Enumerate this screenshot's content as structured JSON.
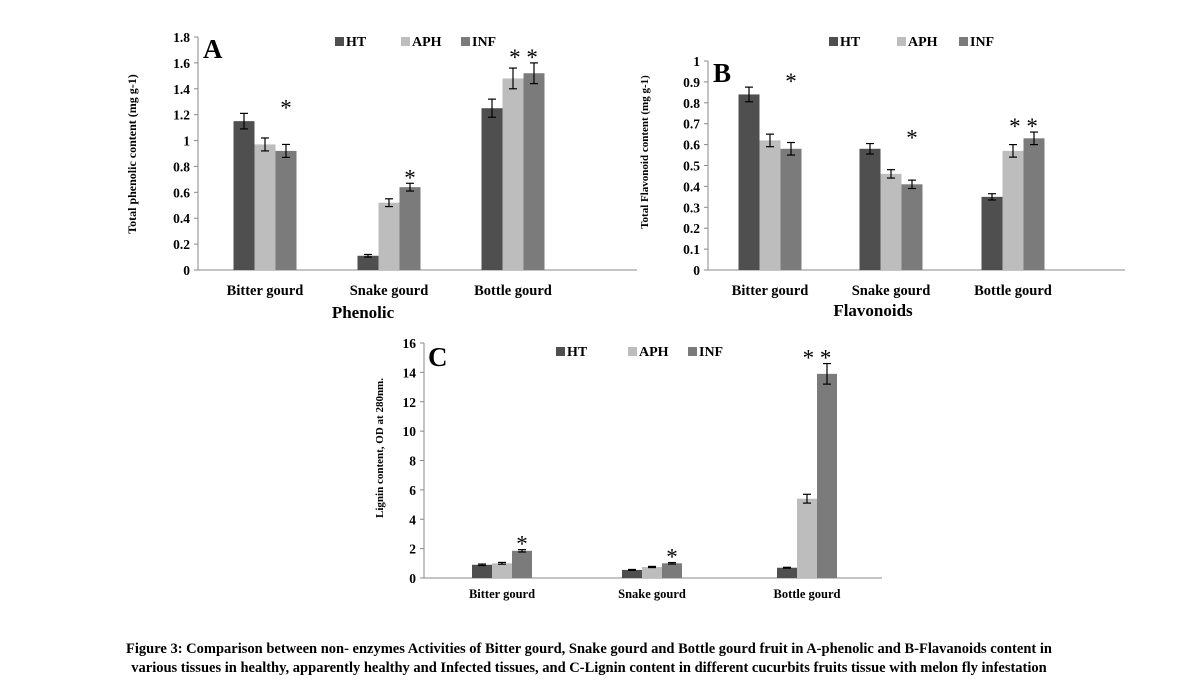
{
  "caption": {
    "line1": "Figure 3: Comparison between non- enzymes Activities of Bitter gourd, Snake gourd and Bottle gourd fruit in A-phenolic and B-Flavanoids content in",
    "line2": "various tissues in healthy, apparently healthy and Infected tissues, and C-Lignin content in different cucurbits fruits tissue with melon fly infestation"
  },
  "colors": {
    "HT": "#4f4f4f",
    "APH": "#bdbdbd",
    "INF": "#7b7b7b"
  },
  "chart_data": [
    {
      "type": "bar",
      "panel_label": "A",
      "title": "",
      "xlabel": "Phenolic",
      "ylabel": "Total phenolic content (mg g-1)",
      "ylim": [
        0,
        1.8
      ],
      "yticks": [
        "0",
        "0.2",
        "0.4",
        "0.6",
        "0.8",
        "1",
        "1.2",
        "1.4",
        "1.6",
        "1.8"
      ],
      "categories": [
        "Bitter gourd",
        "Snake gourd",
        "Bottle gourd"
      ],
      "series": [
        {
          "name": "HT",
          "values": [
            1.15,
            0.11,
            1.25
          ],
          "errors": [
            0.06,
            0.01,
            0.07
          ]
        },
        {
          "name": "APH",
          "values": [
            0.97,
            0.52,
            1.48
          ],
          "errors": [
            0.05,
            0.03,
            0.08
          ]
        },
        {
          "name": "INF",
          "values": [
            0.92,
            0.64,
            1.52
          ],
          "errors": [
            0.05,
            0.03,
            0.08
          ]
        }
      ],
      "annotations": [
        {
          "category": "Bitter gourd",
          "text": "*"
        },
        {
          "category": "Snake gourd",
          "text": "*"
        },
        {
          "category": "Bottle gourd",
          "text": "* *"
        }
      ],
      "legend": "top"
    },
    {
      "type": "bar",
      "panel_label": "B",
      "title": "",
      "xlabel": "Flavonoids",
      "ylabel": "Total Flavonoid content (mg g-1)",
      "ylim": [
        0,
        1
      ],
      "yticks": [
        "0",
        "0.1",
        "0.2",
        "0.3",
        "0.4",
        "0.5",
        "0.6",
        "0.7",
        "0.8",
        "0.9",
        "1"
      ],
      "categories": [
        "Bitter gourd",
        "Snake gourd",
        "Bottle gourd"
      ],
      "series": [
        {
          "name": "HT",
          "values": [
            0.84,
            0.58,
            0.35
          ],
          "errors": [
            0.035,
            0.025,
            0.015
          ]
        },
        {
          "name": "APH",
          "values": [
            0.62,
            0.46,
            0.57
          ],
          "errors": [
            0.03,
            0.02,
            0.03
          ]
        },
        {
          "name": "INF",
          "values": [
            0.58,
            0.41,
            0.63
          ],
          "errors": [
            0.03,
            0.02,
            0.03
          ]
        }
      ],
      "annotations": [
        {
          "category": "Bitter gourd",
          "text": "*"
        },
        {
          "category": "Snake gourd",
          "text": "*"
        },
        {
          "category": "Bottle gourd",
          "text": "* *"
        }
      ],
      "legend": "top"
    },
    {
      "type": "bar",
      "panel_label": "C",
      "title": "",
      "xlabel": "",
      "ylabel": "Lignin content, OD at 280nm.",
      "ylim": [
        0,
        16
      ],
      "yticks": [
        "0",
        "2",
        "4",
        "6",
        "8",
        "10",
        "12",
        "14",
        "16"
      ],
      "categories": [
        "Bitter gourd",
        "Snake gourd",
        "Bottle gourd"
      ],
      "series": [
        {
          "name": "HT",
          "values": [
            0.9,
            0.55,
            0.7
          ],
          "errors": [
            0.05,
            0.03,
            0.03
          ]
        },
        {
          "name": "APH",
          "values": [
            1.0,
            0.75,
            5.4
          ],
          "errors": [
            0.06,
            0.04,
            0.3
          ]
        },
        {
          "name": "INF",
          "values": [
            1.85,
            1.0,
            13.9
          ],
          "errors": [
            0.08,
            0.05,
            0.7
          ]
        }
      ],
      "annotations": [
        {
          "category": "Bitter gourd",
          "text": "*"
        },
        {
          "category": "Snake gourd",
          "text": "*"
        },
        {
          "category": "Bottle gourd",
          "text": "* *"
        }
      ],
      "legend": "top"
    }
  ]
}
